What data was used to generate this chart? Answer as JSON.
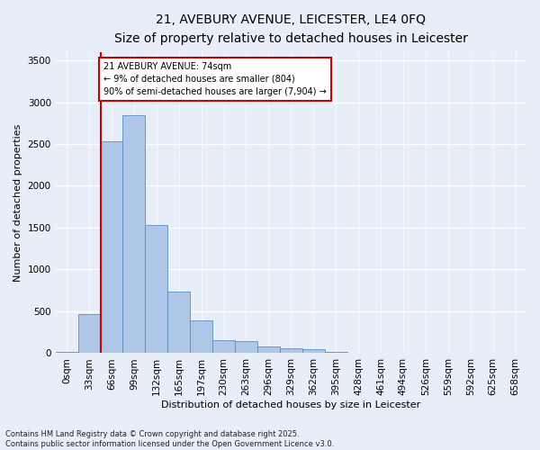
{
  "title_line1": "21, AVEBURY AVENUE, LEICESTER, LE4 0FQ",
  "title_line2": "Size of property relative to detached houses in Leicester",
  "xlabel": "Distribution of detached houses by size in Leicester",
  "ylabel": "Number of detached properties",
  "bar_values": [
    20,
    470,
    2530,
    2840,
    1530,
    740,
    390,
    155,
    150,
    75,
    55,
    45,
    20,
    10,
    5,
    2,
    1,
    1,
    0,
    0,
    0
  ],
  "bar_labels": [
    "0sqm",
    "33sqm",
    "66sqm",
    "99sqm",
    "132sqm",
    "165sqm",
    "197sqm",
    "230sqm",
    "263sqm",
    "296sqm",
    "329sqm",
    "362sqm",
    "395sqm",
    "428sqm",
    "461sqm",
    "494sqm",
    "526sqm",
    "559sqm",
    "592sqm",
    "625sqm",
    "658sqm"
  ],
  "bar_color": "#aec6e8",
  "bar_edge_color": "#5a8fc0",
  "background_color": "#e8eef7",
  "grid_color": "#ffffff",
  "vline_bin": 2,
  "vline_color": "#cc0000",
  "annotation_text": "21 AVEBURY AVENUE: 74sqm\n← 9% of detached houses are smaller (804)\n90% of semi-detached houses are larger (7,904) →",
  "annotation_box_color": "#ffffff",
  "annotation_box_edge": "#cc0000",
  "ylim": [
    0,
    3600
  ],
  "yticks": [
    0,
    500,
    1000,
    1500,
    2000,
    2500,
    3000,
    3500
  ],
  "footnote": "Contains HM Land Registry data © Crown copyright and database right 2025.\nContains public sector information licensed under the Open Government Licence v3.0.",
  "title_fontsize": 10,
  "subtitle_fontsize": 9,
  "axis_label_fontsize": 8,
  "tick_fontsize": 7.5,
  "footnote_fontsize": 6
}
